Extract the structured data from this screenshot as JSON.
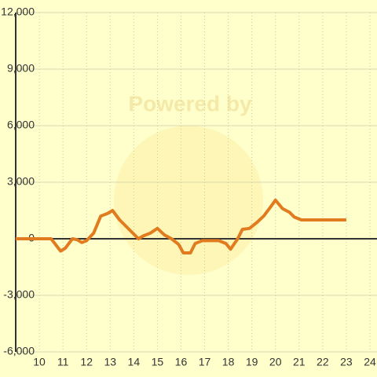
{
  "chart_data": {
    "type": "line",
    "watermark": "Powered by",
    "x": [
      9,
      10.5,
      10.9,
      11.1,
      11.4,
      11.6,
      11.8,
      12.0,
      12.3,
      12.6,
      12.9,
      13.1,
      13.4,
      13.8,
      14.2,
      14.4,
      14.7,
      15.0,
      15.3,
      15.6,
      15.9,
      16.1,
      16.4,
      16.6,
      16.9,
      17.2,
      17.6,
      17.9,
      18.1,
      18.4,
      18.6,
      18.9,
      19.2,
      19.5,
      19.8,
      20.0,
      20.3,
      20.6,
      20.8,
      21.1,
      21.5,
      23.0
    ],
    "series": [
      {
        "color": "#e07b20",
        "values": [
          0,
          0,
          -650,
          -500,
          0,
          -50,
          -200,
          -100,
          300,
          1200,
          1350,
          1500,
          1000,
          500,
          0,
          150,
          300,
          550,
          200,
          0,
          -300,
          -750,
          -750,
          -250,
          -100,
          -100,
          -100,
          -250,
          -550,
          0,
          500,
          550,
          850,
          1200,
          1700,
          2050,
          1600,
          1400,
          1150,
          1000,
          1000,
          1000
        ]
      }
    ],
    "xlim": [
      9,
      24.3
    ],
    "xticks": [
      10,
      11,
      12,
      13,
      14,
      15,
      16,
      17,
      18,
      19,
      20,
      21,
      22,
      23,
      24
    ],
    "ylim": [
      -6000,
      12000
    ],
    "yticks": [
      {
        "value": -6000,
        "label": "-6,000"
      },
      {
        "value": -3000,
        "label": "-3,000"
      },
      0,
      {
        "value": 3000,
        "label": "3,000"
      },
      {
        "value": 6000,
        "label": "6,000"
      },
      {
        "value": 9000,
        "label": "9,000"
      },
      {
        "value": 12000,
        "label": "12,000"
      }
    ],
    "grid": true
  }
}
